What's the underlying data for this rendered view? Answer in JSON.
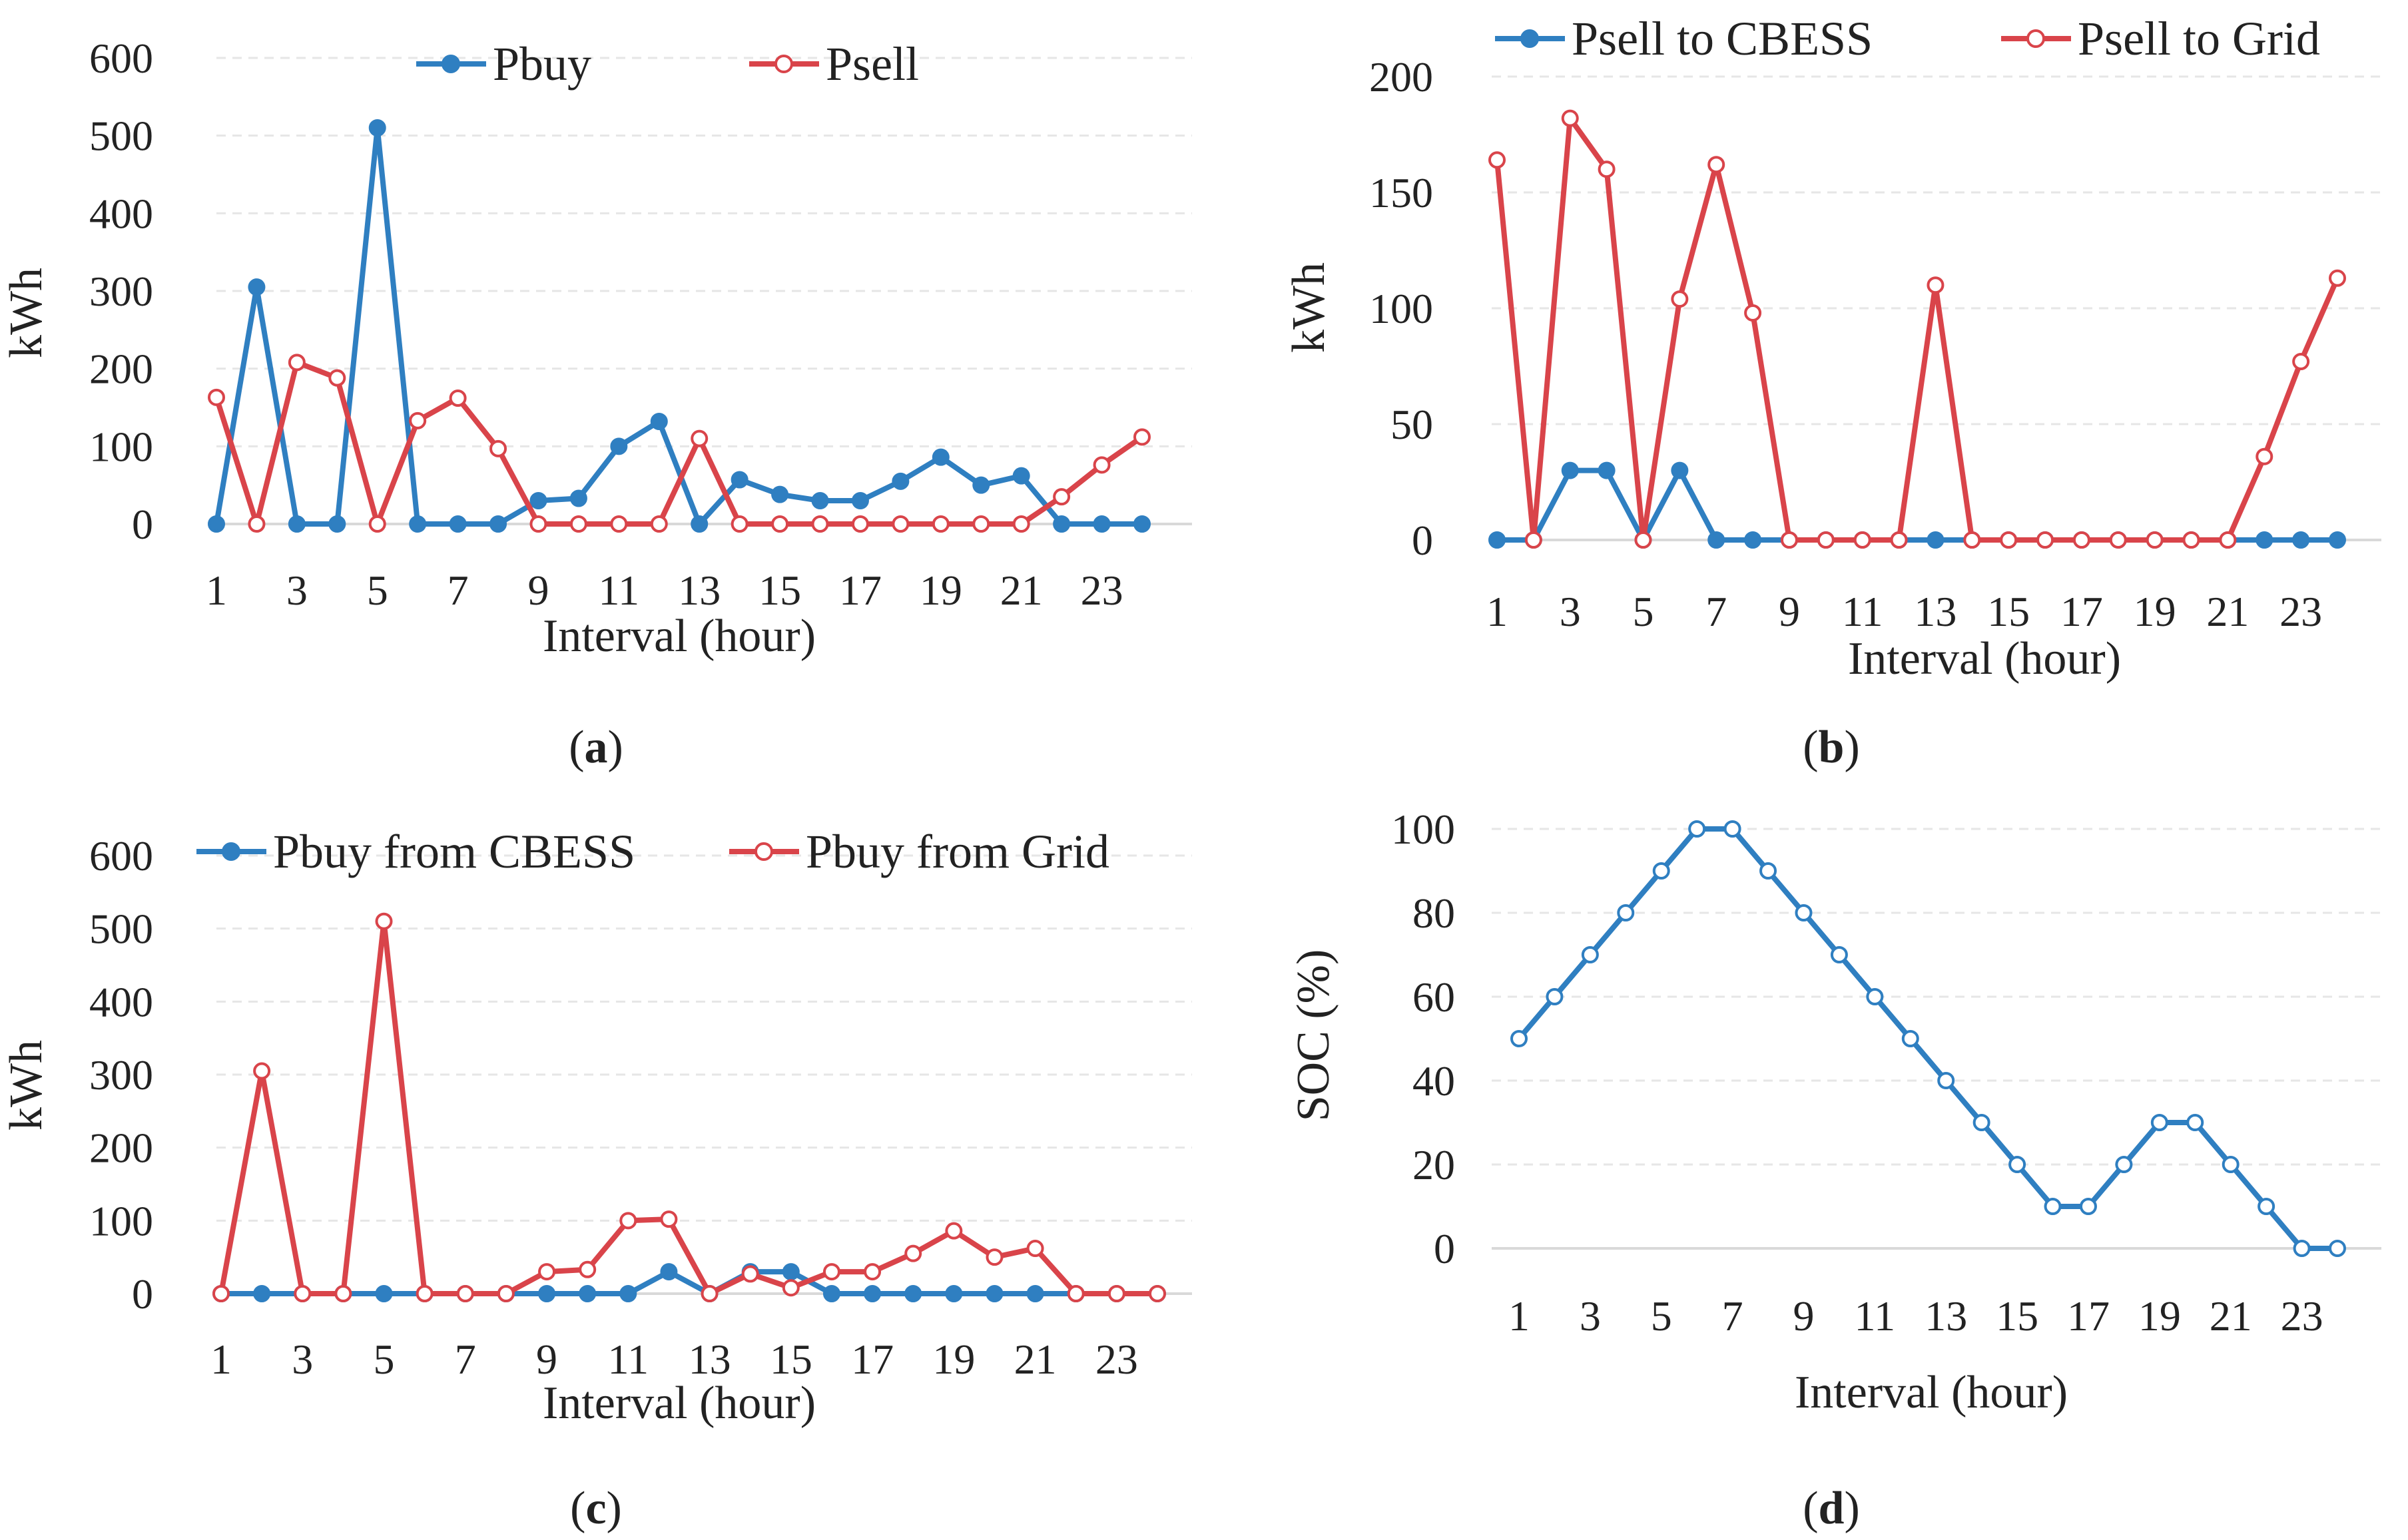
{
  "colors": {
    "blue": "#2f7fc1",
    "red": "#d9444a"
  },
  "panels": [
    {
      "label": "a",
      "chart_data": {
        "type": "line",
        "xlabel": "Interval (hour)",
        "ylabel": "kWh",
        "ylim": [
          0,
          600
        ],
        "yticks": [
          "0",
          "100",
          "200",
          "300",
          "400",
          "500",
          "600"
        ],
        "xticks": [
          "1",
          "3",
          "5",
          "7",
          "9",
          "11",
          "13",
          "15",
          "17",
          "19",
          "21",
          "23"
        ],
        "x": [
          1,
          2,
          3,
          4,
          5,
          6,
          7,
          8,
          9,
          10,
          11,
          12,
          13,
          14,
          15,
          16,
          17,
          18,
          19,
          20,
          21,
          22,
          23,
          24
        ],
        "legend_position": "top",
        "grid": true,
        "series": [
          {
            "name": "Pbuy",
            "color": "#2f7fc1",
            "marker": "filled",
            "values": [
              0,
              305,
              0,
              0,
              510,
              0,
              0,
              0,
              30,
              33,
              100,
              132,
              0,
              57,
              38,
              30,
              30,
              55,
              86,
              50,
              62,
              0,
              0,
              0
            ]
          },
          {
            "name": "Psell",
            "color": "#d9444a",
            "marker": "hollow",
            "values": [
              163,
              0,
              208,
              188,
              0,
              133,
              162,
              97,
              0,
              0,
              0,
              0,
              110,
              0,
              0,
              0,
              0,
              0,
              0,
              0,
              0,
              35,
              76,
              112
            ]
          }
        ]
      }
    },
    {
      "label": "b",
      "chart_data": {
        "type": "line",
        "xlabel": "Interval (hour)",
        "ylabel": "kWh",
        "ylim": [
          0,
          200
        ],
        "yticks": [
          "0",
          "50",
          "100",
          "150",
          "200"
        ],
        "xticks": [
          "1",
          "3",
          "5",
          "7",
          "9",
          "11",
          "13",
          "15",
          "17",
          "19",
          "21",
          "23"
        ],
        "x": [
          1,
          2,
          3,
          4,
          5,
          6,
          7,
          8,
          9,
          10,
          11,
          12,
          13,
          14,
          15,
          16,
          17,
          18,
          19,
          20,
          21,
          22,
          23,
          24
        ],
        "legend_position": "top",
        "grid": true,
        "series": [
          {
            "name": "Psell to CBESS",
            "color": "#2f7fc1",
            "marker": "filled",
            "values": [
              0,
              0,
              30,
              30,
              0,
              30,
              0,
              0,
              0,
              0,
              0,
              0,
              0,
              0,
              0,
              0,
              0,
              0,
              0,
              0,
              0,
              0,
              0,
              0
            ]
          },
          {
            "name": "Psell to Grid",
            "color": "#d9444a",
            "marker": "hollow",
            "values": [
              164,
              0,
              182,
              160,
              0,
              104,
              162,
              98,
              0,
              0,
              0,
              0,
              110,
              0,
              0,
              0,
              0,
              0,
              0,
              0,
              0,
              36,
              77,
              113
            ]
          }
        ]
      }
    },
    {
      "label": "c",
      "chart_data": {
        "type": "line",
        "xlabel": "Interval (hour)",
        "ylabel": "kWh",
        "ylim": [
          0,
          600
        ],
        "yticks": [
          "0",
          "100",
          "200",
          "300",
          "400",
          "500",
          "600"
        ],
        "xticks": [
          "1",
          "3",
          "5",
          "7",
          "9",
          "11",
          "13",
          "15",
          "17",
          "19",
          "21",
          "23"
        ],
        "x": [
          1,
          2,
          3,
          4,
          5,
          6,
          7,
          8,
          9,
          10,
          11,
          12,
          13,
          14,
          15,
          16,
          17,
          18,
          19,
          20,
          21,
          22,
          23,
          24
        ],
        "legend_position": "top",
        "grid": true,
        "series": [
          {
            "name": "Pbuy from CBESS",
            "color": "#2f7fc1",
            "marker": "filled",
            "values": [
              0,
              0,
              0,
              0,
              0,
              0,
              0,
              0,
              0,
              0,
              0,
              30,
              0,
              30,
              30,
              0,
              0,
              0,
              0,
              0,
              0,
              0,
              0,
              0
            ]
          },
          {
            "name": "Pbuy from Grid",
            "color": "#d9444a",
            "marker": "hollow",
            "values": [
              0,
              305,
              0,
              0,
              510,
              0,
              0,
              0,
              30,
              33,
              100,
              102,
              0,
              27,
              8,
              30,
              30,
              55,
              86,
              50,
              62,
              0,
              0,
              0
            ]
          }
        ]
      }
    },
    {
      "label": "d",
      "chart_data": {
        "type": "line",
        "xlabel": "Interval (hour)",
        "ylabel": "SOC (%)",
        "ylim": [
          0,
          100
        ],
        "yticks": [
          "0",
          "20",
          "40",
          "60",
          "80",
          "100"
        ],
        "xticks": [
          "1",
          "3",
          "5",
          "7",
          "9",
          "11",
          "13",
          "15",
          "17",
          "19",
          "21",
          "23"
        ],
        "x": [
          1,
          2,
          3,
          4,
          5,
          6,
          7,
          8,
          9,
          10,
          11,
          12,
          13,
          14,
          15,
          16,
          17,
          18,
          19,
          20,
          21,
          22,
          23,
          24
        ],
        "grid": true,
        "series": [
          {
            "color": "#2f7fc1",
            "marker": "hollow",
            "values": [
              50,
              60,
              70,
              80,
              90,
              100,
              100,
              90,
              80,
              70,
              60,
              50,
              40,
              30,
              20,
              10,
              10,
              20,
              30,
              30,
              20,
              10,
              0,
              0
            ]
          }
        ]
      }
    }
  ]
}
